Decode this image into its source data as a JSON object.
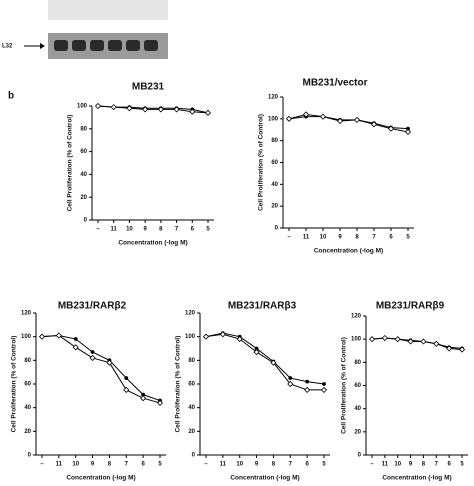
{
  "labels": {
    "panel": "b",
    "blot": "L32"
  },
  "chart_data": [
    {
      "type": "line",
      "title": "MB231",
      "xlabel": "Concentration (-log M)",
      "ylabel": "Cell Proliferation (% of Control)",
      "categories": [
        "–",
        "11",
        "10",
        "9",
        "8",
        "7",
        "6",
        "5"
      ],
      "ylim": [
        0,
        100
      ],
      "yticks": [
        0,
        20,
        40,
        60,
        80,
        100
      ],
      "series": [
        {
          "color": "#000",
          "marker": "circle",
          "values": [
            100,
            99,
            99,
            98,
            98,
            98,
            97,
            94
          ]
        },
        {
          "color": "#000",
          "marker": "diamond",
          "values": [
            100,
            99,
            98,
            97,
            97,
            97,
            95,
            94
          ]
        }
      ]
    },
    {
      "type": "line",
      "title": "MB231/vector",
      "xlabel": "Concentration (-log M)",
      "ylabel": "Cell Proliferation (% of Control)",
      "categories": [
        "–",
        "11",
        "10",
        "9",
        "8",
        "7",
        "6",
        "5"
      ],
      "ylim": [
        0,
        120
      ],
      "yticks": [
        0,
        20,
        40,
        60,
        80,
        100,
        120
      ],
      "series": [
        {
          "color": "#000",
          "marker": "circle",
          "values": [
            100,
            102,
            102,
            99,
            99,
            96,
            92,
            91
          ]
        },
        {
          "color": "#000",
          "marker": "diamond",
          "values": [
            100,
            104,
            102,
            98,
            99,
            95,
            91,
            88
          ]
        }
      ]
    },
    {
      "type": "line",
      "title": "MB231/RARβ2",
      "xlabel": "Concentration (-log M)",
      "ylabel": "Cell Proliferation (% of Control)",
      "categories": [
        "–",
        "11",
        "10",
        "9",
        "8",
        "7",
        "6",
        "5"
      ],
      "ylim": [
        0,
        120
      ],
      "yticks": [
        0,
        20,
        40,
        60,
        80,
        100,
        120
      ],
      "series": [
        {
          "color": "#000",
          "marker": "circle",
          "values": [
            100,
            101,
            98,
            87,
            80,
            65,
            51,
            46
          ]
        },
        {
          "color": "#000",
          "marker": "diamond",
          "values": [
            100,
            101,
            91,
            82,
            78,
            55,
            48,
            44
          ]
        }
      ]
    },
    {
      "type": "line",
      "title": "MB231/RARβ3",
      "xlabel": "Concentration (-log M)",
      "ylabel": "Cell Proliferation (% of Control)",
      "categories": [
        "–",
        "11",
        "10",
        "9",
        "8",
        "7",
        "6",
        "5"
      ],
      "ylim": [
        0,
        120
      ],
      "yticks": [
        0,
        20,
        40,
        60,
        80,
        100,
        120
      ],
      "series": [
        {
          "color": "#000",
          "marker": "circle",
          "values": [
            100,
            103,
            100,
            90,
            79,
            65,
            62,
            60
          ]
        },
        {
          "color": "#000",
          "marker": "diamond",
          "values": [
            100,
            102,
            98,
            87,
            78,
            60,
            55,
            55
          ]
        }
      ]
    },
    {
      "type": "line",
      "title": "MB231/RARβ9",
      "xlabel": "Concentration (-log M)",
      "ylabel": "Cell Proliferation (% of Control)",
      "categories": [
        "–",
        "11",
        "10",
        "9",
        "8",
        "7",
        "6",
        "5"
      ],
      "ylim": [
        0,
        120
      ],
      "yticks": [
        0,
        20,
        40,
        60,
        80,
        100,
        120
      ],
      "series": [
        {
          "color": "#000",
          "marker": "circle",
          "values": [
            100,
            101,
            100,
            99,
            98,
            96,
            93,
            92
          ]
        },
        {
          "color": "#000",
          "marker": "diamond",
          "values": [
            100,
            101,
            100,
            98,
            98,
            96,
            92,
            91
          ]
        }
      ]
    }
  ]
}
